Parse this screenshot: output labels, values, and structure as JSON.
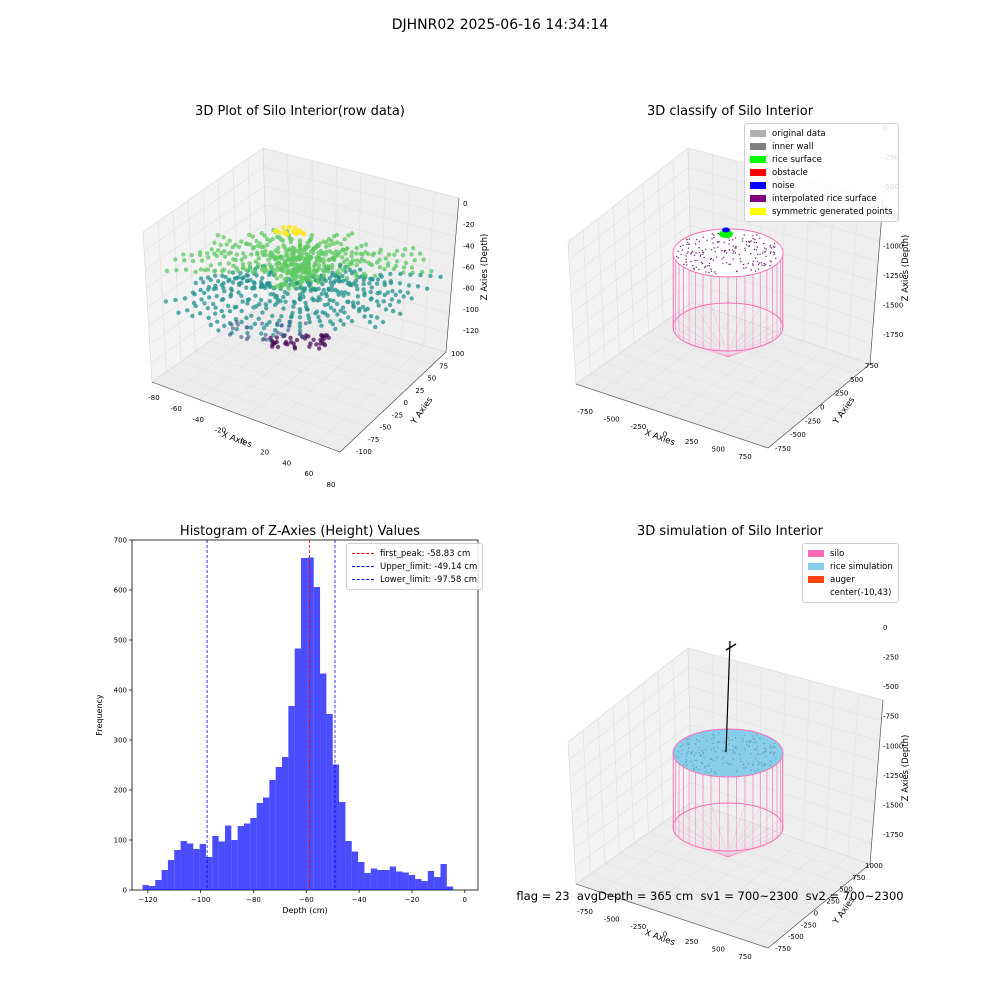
{
  "figure": {
    "suptitle": "DJHNR02 2025-06-16 14:34:14"
  },
  "panels": {
    "raw": {
      "title": "3D Plot of Silo Interior(row data)",
      "xlabel": "X Axies",
      "ylabel": "Y Axies",
      "zlabel": "Z Axies (Depth)",
      "xticks": [
        "-80",
        "-60",
        "-40",
        "-20",
        "0",
        "20",
        "40",
        "60",
        "80"
      ],
      "yticks": [
        "-100",
        "-75",
        "-50",
        "-25",
        "0",
        "25",
        "50",
        "75",
        "100"
      ],
      "zticks": [
        "0",
        "-20",
        "-40",
        "-60",
        "-80",
        "-100",
        "-120"
      ],
      "colormap": [
        "#440154",
        "#3b528b",
        "#21918c",
        "#5ec962",
        "#fde725"
      ]
    },
    "classify": {
      "title": "3D classify of Silo Interior",
      "xlabel": "X Axies",
      "ylabel": "Y Axies",
      "zlabel": "Z Axies (Depth)",
      "xticks": [
        "-750",
        "-500",
        "-250",
        "0",
        "250",
        "500",
        "750"
      ],
      "yticks": [
        "-750",
        "-500",
        "-250",
        "0",
        "250",
        "500",
        "750"
      ],
      "zticks": [
        "0",
        "-250",
        "-500",
        "-750",
        "-1000",
        "-1250",
        "-1500",
        "-1750"
      ],
      "legend": [
        {
          "label": "original data",
          "color": "#b0b0b0"
        },
        {
          "label": "inner wall",
          "color": "#808080"
        },
        {
          "label": "rice surface",
          "color": "#00ff00"
        },
        {
          "label": "obstacle",
          "color": "#ff0000"
        },
        {
          "label": "noise",
          "color": "#0000ff"
        },
        {
          "label": "interpolated rice surface",
          "color": "#800080"
        },
        {
          "label": "symmetric generated points",
          "color": "#ffff00"
        }
      ]
    },
    "simulation": {
      "title": "3D simulation of Silo Interior",
      "xlabel": "X Axies",
      "ylabel": "Y Axies",
      "zlabel": "Z Axies (Depth)",
      "xticks": [
        "-750",
        "-500",
        "-250",
        "0",
        "250",
        "500",
        "750"
      ],
      "yticks": [
        "-750",
        "-500",
        "-250",
        "0",
        "250",
        "500",
        "750",
        "1000"
      ],
      "zticks": [
        "0",
        "-250",
        "-500",
        "-750",
        "-1000",
        "-1250",
        "-1500",
        "-1750"
      ],
      "legend": [
        {
          "label": "silo",
          "color": "#ff69b4"
        },
        {
          "label": "rice simulation",
          "color": "#87ceeb"
        },
        {
          "label": "auger",
          "color": "#ff4500"
        },
        {
          "label": "center(-10,43)",
          "color": ""
        }
      ]
    },
    "footer": {
      "text": "flag = 23  avgDepth = 365 cm  sv1 = 700~2300  sv2 = 700~2300"
    }
  },
  "chart_data": [
    {
      "type": "bar",
      "title": "Histogram of Z-Axies (Height) Values",
      "xlabel": "Depth (cm)",
      "ylabel": "Frequency",
      "xlim": [
        -126,
        5
      ],
      "ylim": [
        0,
        700
      ],
      "xticks": [
        -120,
        -100,
        -80,
        -60,
        -40,
        -20,
        0
      ],
      "yticks": [
        0,
        100,
        200,
        300,
        400,
        500,
        600,
        700
      ],
      "bar_color": "#0000ff",
      "bin_width": 2.4,
      "bin_start": -122.0,
      "values": [
        10,
        8,
        20,
        40,
        60,
        80,
        98,
        93,
        82,
        92,
        66,
        108,
        97,
        129,
        100,
        128,
        133,
        144,
        174,
        185,
        220,
        246,
        266,
        368,
        483,
        664,
        665,
        606,
        433,
        352,
        251,
        176,
        98,
        77,
        56,
        34,
        43,
        40,
        40,
        47,
        37,
        35,
        30,
        22,
        18,
        38,
        26,
        52,
        7
      ],
      "vlines": [
        {
          "x": -58.83,
          "label": "first_peak: -58.83 cm",
          "color": "#ff0000"
        },
        {
          "x": -49.14,
          "label": "Upper_limit: -49.14 cm",
          "color": "#0000ff"
        },
        {
          "x": -97.58,
          "label": "Lower_limit: -97.58 cm",
          "color": "#0000ff"
        }
      ],
      "legend_position": "top-right"
    }
  ]
}
